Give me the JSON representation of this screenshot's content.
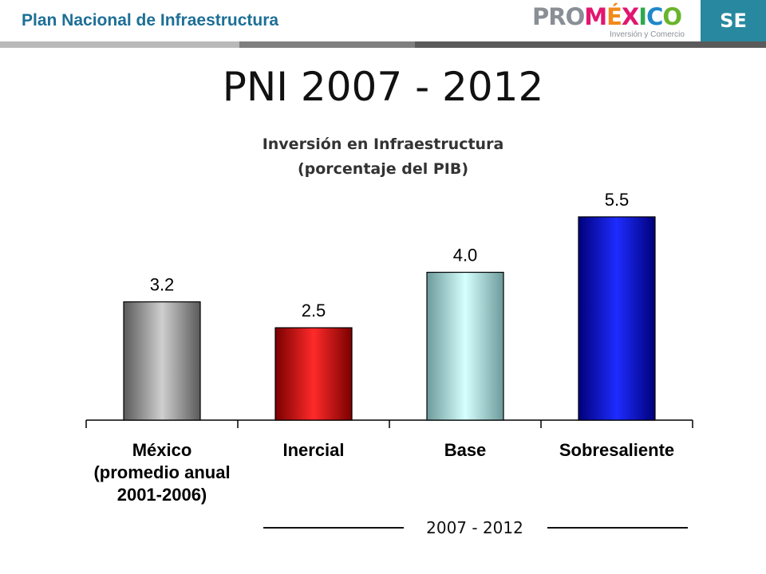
{
  "header": {
    "title": "Plan Nacional de Infraestructura"
  },
  "logo": {
    "pro": "PRO",
    "mexico": "MÉXICO",
    "subtitle": "Inversión y Comercio"
  },
  "se_badge": "SE",
  "main_title": "PNI 2007 - 2012",
  "chart_data": {
    "type": "bar",
    "title_lines": [
      "Inversión en Infraestructura",
      "(porcentaje del PIB)"
    ],
    "categories": [
      [
        "México",
        "(promedio anual",
        "2001-2006)"
      ],
      [
        "Inercial"
      ],
      [
        "Base"
      ],
      [
        "Sobresaliente"
      ]
    ],
    "values": [
      3.2,
      2.5,
      4.0,
      5.5
    ],
    "value_labels": [
      "3.2",
      "2.5",
      "4.0",
      "5.5"
    ],
    "bar_colors": [
      "#a8a8a8",
      "#e81010",
      "#b8ecec",
      "#0a14c8"
    ],
    "ylim": [
      0,
      5.5
    ],
    "grid": false,
    "group_label": "2007 - 2012"
  },
  "colors": {
    "header_text": "#1d6f96",
    "accent_teal": "#27889f",
    "divider_light": "#b9b9b9",
    "divider_mid": "#7f7f7f",
    "divider_dark": "#5a5a5a"
  }
}
